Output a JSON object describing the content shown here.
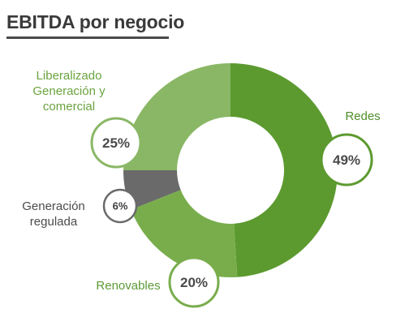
{
  "chart_data": {
    "type": "pie",
    "title": "EBITDA por negocio",
    "categories": [
      "Redes",
      "Renovables",
      "Generación regulada",
      "Liberalizado Generación y comercial"
    ],
    "values": [
      49,
      20,
      6,
      25
    ],
    "value_labels": [
      "49%",
      "20%",
      "6%",
      "25%"
    ],
    "label_lines": [
      [
        "Redes"
      ],
      [
        "Renovables"
      ],
      [
        "Generación",
        "regulada"
      ],
      [
        "Liberalizado",
        "Generación y",
        "comercial"
      ]
    ],
    "colors": [
      "#5c9a2f",
      "#79ad4c",
      "#6a6a6a",
      "#8ab765"
    ],
    "label_colors": [
      "#4f8f2a",
      "#5d9a36",
      "#4b4b4b",
      "#6aa33f"
    ],
    "donut": true,
    "legend": "none"
  }
}
